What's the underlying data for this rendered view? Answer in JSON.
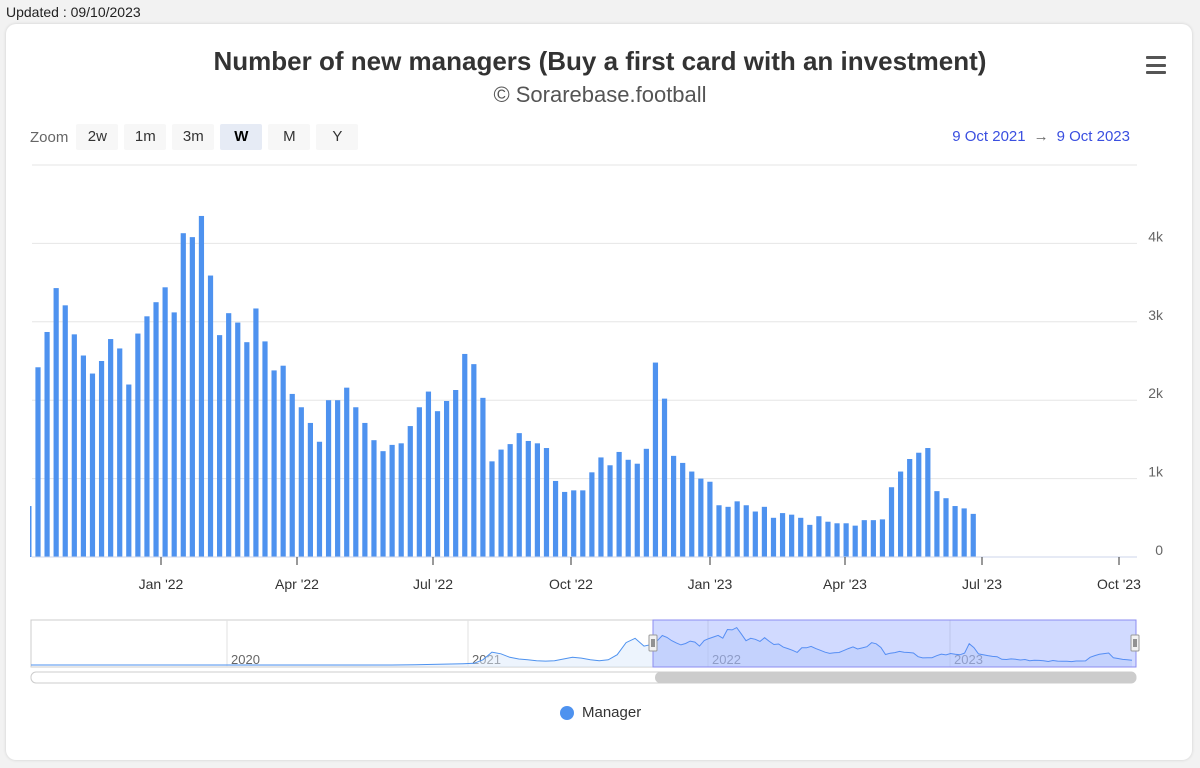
{
  "updated_label": "Updated : 09/10/2023",
  "title": "Number of new managers (Buy a first card with an investment)",
  "subtitle": "© Sorarebase.football",
  "zoom": {
    "label": "Zoom",
    "buttons": [
      "2w",
      "1m",
      "3m",
      "W",
      "M",
      "Y"
    ],
    "active": "W"
  },
  "range": {
    "from": "9 Oct 2021",
    "arrow": "→",
    "to": "9 Oct 2023"
  },
  "legend": {
    "label": "Manager",
    "color": "#4e92ef"
  },
  "navigator": {
    "year_labels": [
      "2020",
      "2021",
      "2022",
      "2023"
    ]
  },
  "chart_data": {
    "type": "bar",
    "title": "Number of new managers (Buy a first card with an investment)",
    "subtitle": "© Sorarebase.football",
    "x_tick_labels": [
      "Jan '22",
      "Apr '22",
      "Jul '22",
      "Oct '22",
      "Jan '23",
      "Apr '23",
      "Jul '23",
      "Oct '23"
    ],
    "y_tick_labels": [
      "0",
      "1k",
      "2k",
      "3k",
      "4k"
    ],
    "ylim": [
      0,
      5000
    ],
    "grid": true,
    "legend_position": "bottom-center",
    "series": [
      {
        "name": "Manager",
        "color": "#4e92ef",
        "values": [
          2420,
          2870,
          3430,
          3210,
          2840,
          2570,
          2340,
          2500,
          2780,
          2660,
          2200,
          2850,
          3070,
          3250,
          3440,
          3120,
          4130,
          4080,
          4350,
          3590,
          2830,
          3110,
          2990,
          2740,
          3170,
          2750,
          2380,
          2440,
          2080,
          1910,
          1710,
          1470,
          2000,
          2000,
          2160,
          1910,
          1710,
          1490,
          1350,
          1430,
          1450,
          1670,
          1910,
          2110,
          1860,
          1990,
          2130,
          2590,
          2460,
          2030,
          1220,
          1370,
          1440,
          1580,
          1480,
          1450,
          1390,
          970,
          830,
          850,
          850,
          1080,
          1270,
          1170,
          1340,
          1240,
          1190,
          1380,
          2480,
          2020,
          1290,
          1200,
          1090,
          1000,
          960,
          660,
          640,
          710,
          660,
          580,
          640,
          500,
          560,
          540,
          500,
          410,
          520,
          450,
          430,
          430,
          400,
          470,
          470,
          480,
          890,
          1090,
          1250,
          1330,
          1390,
          840,
          750,
          650,
          620,
          550
        ]
      }
    ]
  }
}
